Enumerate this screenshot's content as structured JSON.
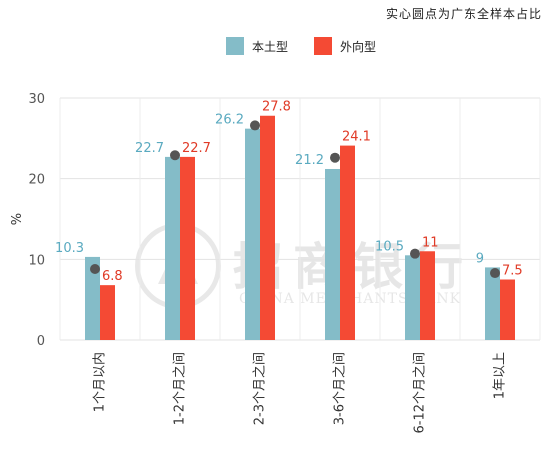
{
  "note": "实心圆点为广东全样本占比",
  "watermark": {
    "cn": "招商银行",
    "en": "CHINA MERCHANTS BANK"
  },
  "chart_data": {
    "type": "bar",
    "categories": [
      "1个月以内",
      "1-2个月之间",
      "2-3个月之间",
      "3-6个月之间",
      "6-12个月之间",
      "1年以上"
    ],
    "series": [
      {
        "name": "本土型",
        "color": "#84bcc8",
        "label_color": "#5aaac0",
        "values": [
          10.3,
          22.7,
          26.2,
          21.2,
          10.5,
          9
        ],
        "labels": [
          "10.3",
          "22.7",
          "26.2",
          "21.2",
          "10.5",
          "9"
        ]
      },
      {
        "name": "外向型",
        "color": "#f44a34",
        "label_color": "#e03a26",
        "values": [
          6.8,
          22.7,
          27.8,
          24.1,
          11,
          7.5
        ],
        "labels": [
          "6.8",
          "22.7",
          "27.8",
          "24.1",
          "11",
          "7.5"
        ]
      }
    ],
    "dots": [
      8.8,
      22.9,
      26.6,
      22.6,
      10.7,
      8.3
    ],
    "dot_color": "#555555",
    "ylabel": "%",
    "ylim": [
      0,
      30
    ],
    "yticks": [
      0,
      10,
      20,
      30
    ],
    "grid": true,
    "legend_position": "top-center"
  }
}
